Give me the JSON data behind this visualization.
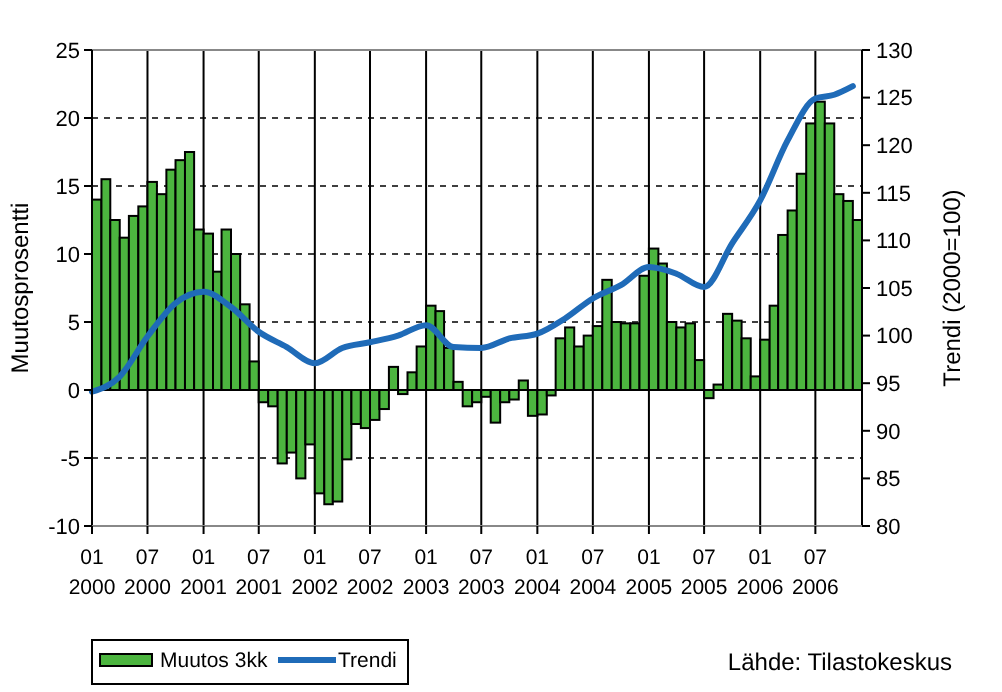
{
  "chart_data": {
    "type": "bar",
    "ylabel": "Muutosprosentti",
    "y2label": "Trendi (2000=100)",
    "annotations": [
      "Lähde: Tilastokeskus"
    ],
    "x": [
      "2000-01",
      "2000-02",
      "2000-03",
      "2000-04",
      "2000-05",
      "2000-06",
      "2000-07",
      "2000-08",
      "2000-09",
      "2000-10",
      "2000-11",
      "2000-12",
      "2001-01",
      "2001-02",
      "2001-03",
      "2001-04",
      "2001-05",
      "2001-06",
      "2001-07",
      "2001-08",
      "2001-09",
      "2001-10",
      "2001-11",
      "2001-12",
      "2002-01",
      "2002-02",
      "2002-03",
      "2002-04",
      "2002-05",
      "2002-06",
      "2002-07",
      "2002-08",
      "2002-09",
      "2002-10",
      "2002-11",
      "2002-12",
      "2003-01",
      "2003-02",
      "2003-03",
      "2003-04",
      "2003-05",
      "2003-06",
      "2003-07",
      "2003-08",
      "2003-09",
      "2003-10",
      "2003-11",
      "2003-12",
      "2004-01",
      "2004-02",
      "2004-03",
      "2004-04",
      "2004-05",
      "2004-06",
      "2004-07",
      "2004-08",
      "2004-09",
      "2004-10",
      "2004-11",
      "2004-12",
      "2005-01",
      "2005-02",
      "2005-03",
      "2005-04",
      "2005-05",
      "2005-06",
      "2005-07",
      "2005-08",
      "2005-09",
      "2005-10",
      "2005-11",
      "2005-12",
      "2006-01",
      "2006-02",
      "2006-03",
      "2006-04",
      "2006-05",
      "2006-06",
      "2006-07",
      "2006-08",
      "2006-09",
      "2006-10",
      "2006-11"
    ],
    "series": [
      {
        "name": "Muutos 3kk",
        "color": "#4cb53f",
        "values": [
          14.0,
          15.5,
          12.5,
          11.2,
          12.8,
          13.5,
          15.3,
          14.4,
          16.2,
          16.9,
          17.5,
          11.8,
          11.5,
          8.7,
          11.8,
          10.0,
          6.3,
          2.1,
          -0.9,
          -1.2,
          -5.4,
          -4.6,
          -6.5,
          -4.0,
          -7.6,
          -8.4,
          -8.2,
          -5.1,
          -2.5,
          -2.8,
          -2.2,
          -1.4,
          1.7,
          -0.3,
          1.3,
          3.2,
          6.2,
          5.8,
          3.1,
          0.6,
          -1.2,
          -0.9,
          -0.5,
          -2.4,
          -0.9,
          -0.7,
          0.7,
          -1.9,
          -1.8,
          -0.4,
          3.8,
          4.6,
          3.2,
          4.0,
          4.7,
          8.1,
          5.0,
          4.9,
          4.9,
          8.4,
          10.4,
          9.3,
          5.0,
          4.6,
          4.9,
          2.2,
          -0.6,
          0.4,
          5.6,
          5.1,
          3.8,
          1.0,
          3.7,
          6.2,
          11.4,
          13.2,
          15.9,
          19.6,
          21.2,
          19.6,
          14.4,
          13.9,
          12.5
        ]
      },
      {
        "name": "Trendi",
        "type": "line",
        "axis": "y2",
        "color": "#1f6bb8",
        "x": [
          "2000-01",
          "2000-04",
          "2000-07",
          "2000-10",
          "2001-01",
          "2001-04",
          "2001-07",
          "2001-10",
          "2002-01",
          "2002-04",
          "2002-07",
          "2002-10",
          "2003-01",
          "2003-04",
          "2003-07",
          "2003-10",
          "2004-01",
          "2004-04",
          "2004-07",
          "2004-10",
          "2005-01",
          "2005-04",
          "2005-07",
          "2005-10",
          "2006-01",
          "2006-04",
          "2006-07",
          "2006-09",
          "2006-11"
        ],
        "values": [
          94.1,
          95.7,
          99.9,
          103.4,
          104.6,
          103.0,
          100.4,
          98.8,
          97.1,
          98.7,
          99.3,
          100.0,
          101.1,
          98.8,
          98.7,
          99.7,
          100.2,
          101.8,
          103.9,
          105.3,
          107.2,
          106.5,
          105.1,
          109.7,
          114.2,
          120.5,
          124.9,
          125.3,
          126.2
        ]
      }
    ],
    "xlim": [
      "2000-01",
      "2006-12"
    ],
    "xticks": [
      {
        "value": "2000-01",
        "label": "01 2000"
      },
      {
        "value": "2000-07",
        "label": "07 2000"
      },
      {
        "value": "2001-01",
        "label": "01 2001"
      },
      {
        "value": "2001-07",
        "label": "07 2001"
      },
      {
        "value": "2002-01",
        "label": "01 2002"
      },
      {
        "value": "2002-07",
        "label": "07 2002"
      },
      {
        "value": "2003-01",
        "label": "01 2003"
      },
      {
        "value": "2003-07",
        "label": "07 2003"
      },
      {
        "value": "2004-01",
        "label": "01 2004"
      },
      {
        "value": "2004-07",
        "label": "07 2004"
      },
      {
        "value": "2005-01",
        "label": "01 2005"
      },
      {
        "value": "2005-07",
        "label": "07 2005"
      },
      {
        "value": "2006-01",
        "label": "01 2006"
      },
      {
        "value": "2006-07",
        "label": "07 2006"
      }
    ],
    "ylim": [
      -10,
      25
    ],
    "yticks": [
      -10,
      -5,
      0,
      5,
      10,
      15,
      20,
      25
    ],
    "y2lim": [
      80,
      130
    ],
    "y2ticks": [
      80,
      85,
      90,
      95,
      100,
      105,
      110,
      115,
      120,
      125,
      130
    ],
    "grid": true,
    "legend": "bottom left"
  }
}
